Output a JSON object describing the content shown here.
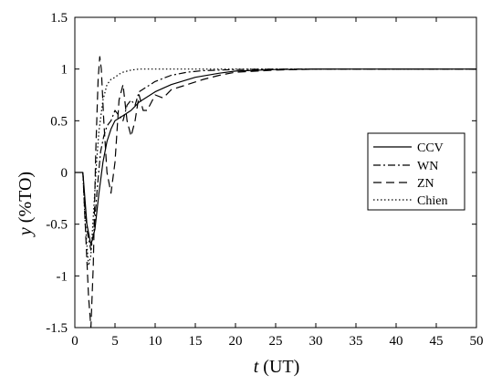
{
  "chart_data": {
    "type": "line",
    "title": "",
    "xlabel": {
      "var": "t",
      "unit": "(UT)"
    },
    "ylabel": {
      "var": "y",
      "unit": "(%TO)"
    },
    "xlim": [
      0,
      50
    ],
    "ylim": [
      -1.5,
      1.5
    ],
    "xticks": [
      0,
      5,
      10,
      15,
      20,
      25,
      30,
      35,
      40,
      45,
      50
    ],
    "yticks": [
      -1.5,
      -1,
      -0.5,
      0,
      0.5,
      1,
      1.5
    ],
    "ytick_labels": [
      "-1.5",
      "-1",
      "-0.5",
      "0",
      "0.5",
      "1",
      "1.5"
    ],
    "grid": false,
    "legend_position": "right",
    "series": [
      {
        "name": "CCV",
        "style": "solid",
        "x": [
          0,
          1,
          1.1,
          1.5,
          2,
          2.5,
          3,
          3.5,
          4,
          4.5,
          5,
          6,
          7,
          8,
          10,
          12,
          15,
          18,
          20,
          25,
          30,
          50
        ],
        "y": [
          0,
          0,
          -0.1,
          -0.5,
          -0.7,
          -0.55,
          -0.2,
          0.1,
          0.3,
          0.42,
          0.5,
          0.55,
          0.6,
          0.68,
          0.78,
          0.85,
          0.92,
          0.96,
          0.98,
          0.995,
          1.0,
          1.0
        ]
      },
      {
        "name": "WN",
        "style": "dashdot",
        "x": [
          1,
          1.2,
          1.6,
          2,
          2.4,
          2.8,
          3.2,
          3.6,
          4,
          4.5,
          5,
          5.5,
          6,
          6.5,
          7,
          7.5,
          8,
          9,
          10,
          12,
          14,
          16,
          18,
          20,
          25,
          30,
          50
        ],
        "y": [
          0,
          -0.3,
          -0.6,
          -0.75,
          -0.55,
          -0.15,
          0.2,
          0.35,
          0.45,
          0.5,
          0.6,
          0.55,
          0.5,
          0.65,
          0.7,
          0.65,
          0.78,
          0.83,
          0.88,
          0.94,
          0.97,
          0.985,
          0.99,
          0.995,
          1.0,
          1.0,
          1.0
        ]
      },
      {
        "name": "ZN",
        "style": "dashed",
        "x": [
          1,
          1.3,
          1.7,
          2,
          2.3,
          2.6,
          2.9,
          3.1,
          3.3,
          3.6,
          4,
          4.5,
          5,
          5.5,
          6,
          6.5,
          7,
          7.5,
          8,
          8.5,
          9,
          10,
          11,
          12,
          14,
          16,
          18,
          20,
          25,
          30,
          50
        ],
        "y": [
          0,
          -0.5,
          -1.2,
          -1.5,
          -0.9,
          0.2,
          0.9,
          1.12,
          1.0,
          0.5,
          0.0,
          -0.2,
          0.1,
          0.7,
          0.85,
          0.5,
          0.35,
          0.5,
          0.75,
          0.6,
          0.6,
          0.75,
          0.72,
          0.8,
          0.85,
          0.9,
          0.94,
          0.97,
          0.99,
          1.0,
          1.0
        ]
      },
      {
        "name": "Chien",
        "style": "dotted",
        "x": [
          1,
          1.3,
          1.7,
          2,
          2.4,
          2.7,
          3,
          3.5,
          4,
          4.5,
          5,
          5.5,
          6,
          7,
          8,
          9,
          10,
          12,
          15,
          50
        ],
        "y": [
          0,
          -0.5,
          -0.9,
          -0.8,
          -0.3,
          0.1,
          0.4,
          0.7,
          0.85,
          0.9,
          0.92,
          0.95,
          0.97,
          0.99,
          1.0,
          1.0,
          1.0,
          1.0,
          1.0,
          1.0
        ]
      }
    ]
  }
}
